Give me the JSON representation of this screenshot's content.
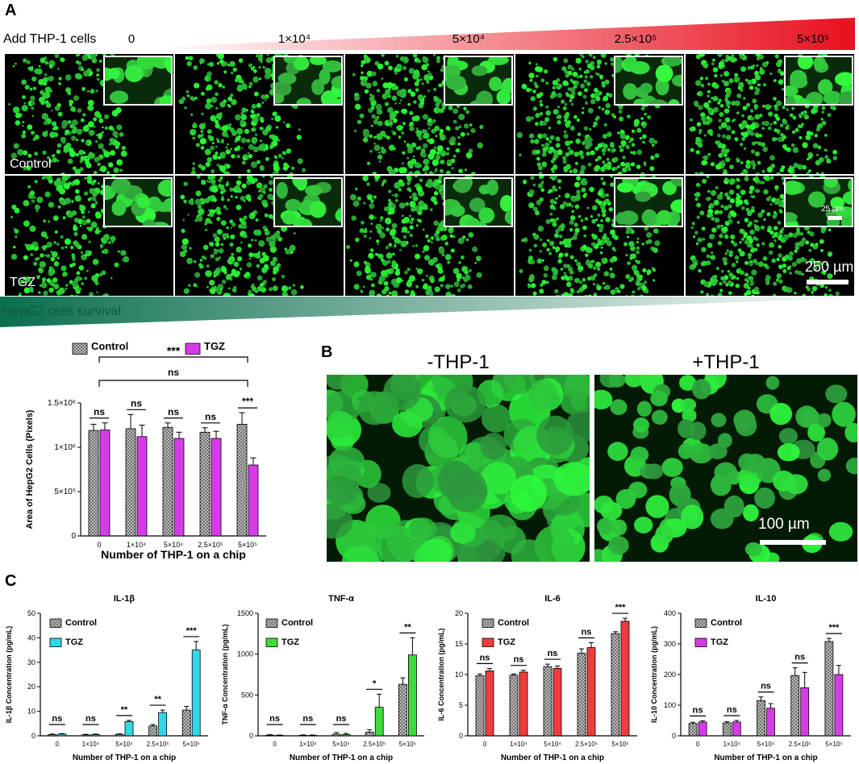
{
  "panel_a": {
    "letter": "A",
    "add_label": "Add THP-1 cells",
    "concentrations": [
      "0",
      "1×10⁴",
      "5×10⁴",
      "2.5×10⁵",
      "5×10⁵"
    ],
    "row_labels": [
      "Control",
      "TGZ"
    ],
    "inset_scale": "25 µm",
    "scale_bar": "250 µm",
    "survival_label": "HepG2 cells survival",
    "colors": {
      "add_gradient_end": "#e8101e",
      "survival_gradient_start": "#0b6e4f",
      "fluorescence": "#36d13a"
    }
  },
  "panel_b": {
    "letter": "B",
    "left_title": "-THP-1",
    "right_title": "+THP-1",
    "scale_bar": "100 µm"
  },
  "panel_c": {
    "letter": "C"
  },
  "chart_data": [
    {
      "type": "bar",
      "title": "",
      "xlabel": "Number of THP-1 on a chip",
      "ylabel": "Area of HepG2 Cells (Pixels)",
      "categories": [
        "0",
        "1×10⁴",
        "5×10⁴",
        "2.5×10⁵",
        "5×10⁵"
      ],
      "ylim": [
        0,
        1500000
      ],
      "yticks": [
        "0",
        "5×10⁵",
        "1×10⁶",
        "1.5×10⁶"
      ],
      "legend": "top",
      "series": [
        {
          "name": "Control",
          "color": "#bdbdbd",
          "values": [
            1190000,
            1210000,
            1225000,
            1170000,
            1260000
          ],
          "errors": [
            70000,
            160000,
            50000,
            50000,
            130000
          ]
        },
        {
          "name": "TGZ",
          "color": "#d63ce6",
          "values": [
            1195000,
            1120000,
            1100000,
            1100000,
            800000
          ],
          "errors": [
            80000,
            130000,
            70000,
            80000,
            80000
          ]
        }
      ],
      "significance": [
        "ns",
        "ns",
        "ns",
        "ns",
        "***"
      ],
      "bracket_labels": [
        "***",
        "ns"
      ]
    },
    {
      "type": "bar",
      "title": "IL-1β",
      "xlabel": "Number of THP-1 on a chip",
      "ylabel": "IL-1β Concentration (pg/mL)",
      "categories": [
        "0",
        "1×10⁴",
        "5×10⁴",
        "2.5×10⁵",
        "5×10⁵"
      ],
      "ylim": [
        0,
        50
      ],
      "yticks": [
        "0",
        "10",
        "20",
        "30",
        "40",
        "50"
      ],
      "legend": "top-left",
      "series": [
        {
          "name": "Control",
          "color": "#bdbdbd",
          "values": [
            0.5,
            0.4,
            0.6,
            4,
            10.5
          ],
          "errors": [
            0.2,
            0.2,
            0.2,
            0.6,
            1.5
          ]
        },
        {
          "name": "TGZ",
          "color": "#33d6e6",
          "values": [
            0.7,
            0.5,
            5.8,
            9.5,
            35
          ],
          "errors": [
            0.2,
            0.2,
            0.5,
            1.0,
            3.5
          ]
        }
      ],
      "significance": [
        "ns",
        "ns",
        "**",
        "**",
        "***"
      ]
    },
    {
      "type": "bar",
      "title": "TNF-α",
      "xlabel": "Number of THP-1 on a chip",
      "ylabel": "TNF-α Concentration (pg/mL)",
      "categories": [
        "0",
        "1×10⁴",
        "5×10⁴",
        "2.5×10⁵",
        "5×10⁵"
      ],
      "ylim": [
        0,
        1500
      ],
      "yticks": [
        "0",
        "500",
        "1000",
        "1500"
      ],
      "legend": "top-left",
      "series": [
        {
          "name": "Control",
          "color": "#bdbdbd",
          "values": [
            8,
            6,
            20,
            45,
            630
          ],
          "errors": [
            5,
            5,
            20,
            30,
            80
          ]
        },
        {
          "name": "TGZ",
          "color": "#3ddc3a",
          "values": [
            5,
            5,
            15,
            350,
            990
          ],
          "errors": [
            5,
            5,
            15,
            160,
            210
          ]
        }
      ],
      "significance": [
        "ns",
        "ns",
        "ns",
        "*",
        "**"
      ]
    },
    {
      "type": "bar",
      "title": "IL-6",
      "xlabel": "Number of THP-1 on a chip",
      "ylabel": "IL-6 Concentration (pg/mL)",
      "categories": [
        "0",
        "1×10⁴",
        "5×10⁴",
        "2.5×10⁵",
        "5×10⁵"
      ],
      "ylim": [
        0,
        20
      ],
      "yticks": [
        "0",
        "5",
        "10",
        "15",
        "20"
      ],
      "legend": "top-left",
      "series": [
        {
          "name": "Control",
          "color": "#bdbdbd",
          "values": [
            9.8,
            9.9,
            11.3,
            13.5,
            16.7
          ],
          "errors": [
            0.3,
            0.2,
            0.4,
            0.7,
            0.3
          ]
        },
        {
          "name": "TGZ",
          "color": "#f03c3c",
          "values": [
            10.6,
            10.4,
            11.0,
            14.4,
            18.7
          ],
          "errors": [
            0.4,
            0.3,
            0.4,
            0.8,
            0.5
          ]
        }
      ],
      "significance": [
        "ns",
        "ns",
        "ns",
        "ns",
        "***"
      ]
    },
    {
      "type": "bar",
      "title": "IL-10",
      "xlabel": "Number of THP-1 on a chip",
      "ylabel": "IL-10 Concentration (pg/mL)",
      "categories": [
        "0",
        "1×10⁴",
        "5×10⁴",
        "2.5×10⁵",
        "5×10⁵"
      ],
      "ylim": [
        0,
        400
      ],
      "yticks": [
        "0",
        "100",
        "200",
        "300",
        "400"
      ],
      "legend": "top-left",
      "series": [
        {
          "name": "Control",
          "color": "#bdbdbd",
          "values": [
            40,
            42,
            115,
            197,
            308
          ],
          "errors": [
            4,
            4,
            12,
            25,
            10
          ]
        },
        {
          "name": "TGZ",
          "color": "#d63ce6",
          "values": [
            45,
            45,
            90,
            157,
            200
          ],
          "errors": [
            4,
            5,
            15,
            50,
            30
          ]
        }
      ],
      "significance": [
        "ns",
        "ns",
        "ns",
        "ns",
        "***"
      ]
    }
  ]
}
